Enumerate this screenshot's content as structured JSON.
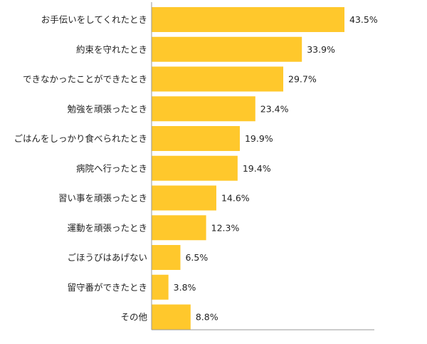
{
  "chart_data": {
    "type": "bar",
    "orientation": "horizontal",
    "categories": [
      "お手伝いをしてくれたとき",
      "約束を守れたとき",
      "できなかったことができたとき",
      "勉強を頑張ったとき",
      "ごはんをしっかり食べられたとき",
      "病院へ行ったとき",
      "習い事を頑張ったとき",
      "運動を頑張ったとき",
      "ごほうびはあげない",
      "留守番ができたとき",
      "その他"
    ],
    "values": [
      43.5,
      33.9,
      29.7,
      23.4,
      19.9,
      19.4,
      14.6,
      12.3,
      6.5,
      3.8,
      8.8
    ],
    "value_labels": [
      "43.5%",
      "33.9%",
      "29.7%",
      "23.4%",
      "19.9%",
      "19.4%",
      "14.6%",
      "12.3%",
      "6.5%",
      "3.8%",
      "8.8%"
    ],
    "xlim": [
      0,
      43.5
    ],
    "bar_color": "#FFC82C",
    "axis_color": "#999999",
    "grid": false,
    "legend": "none"
  }
}
